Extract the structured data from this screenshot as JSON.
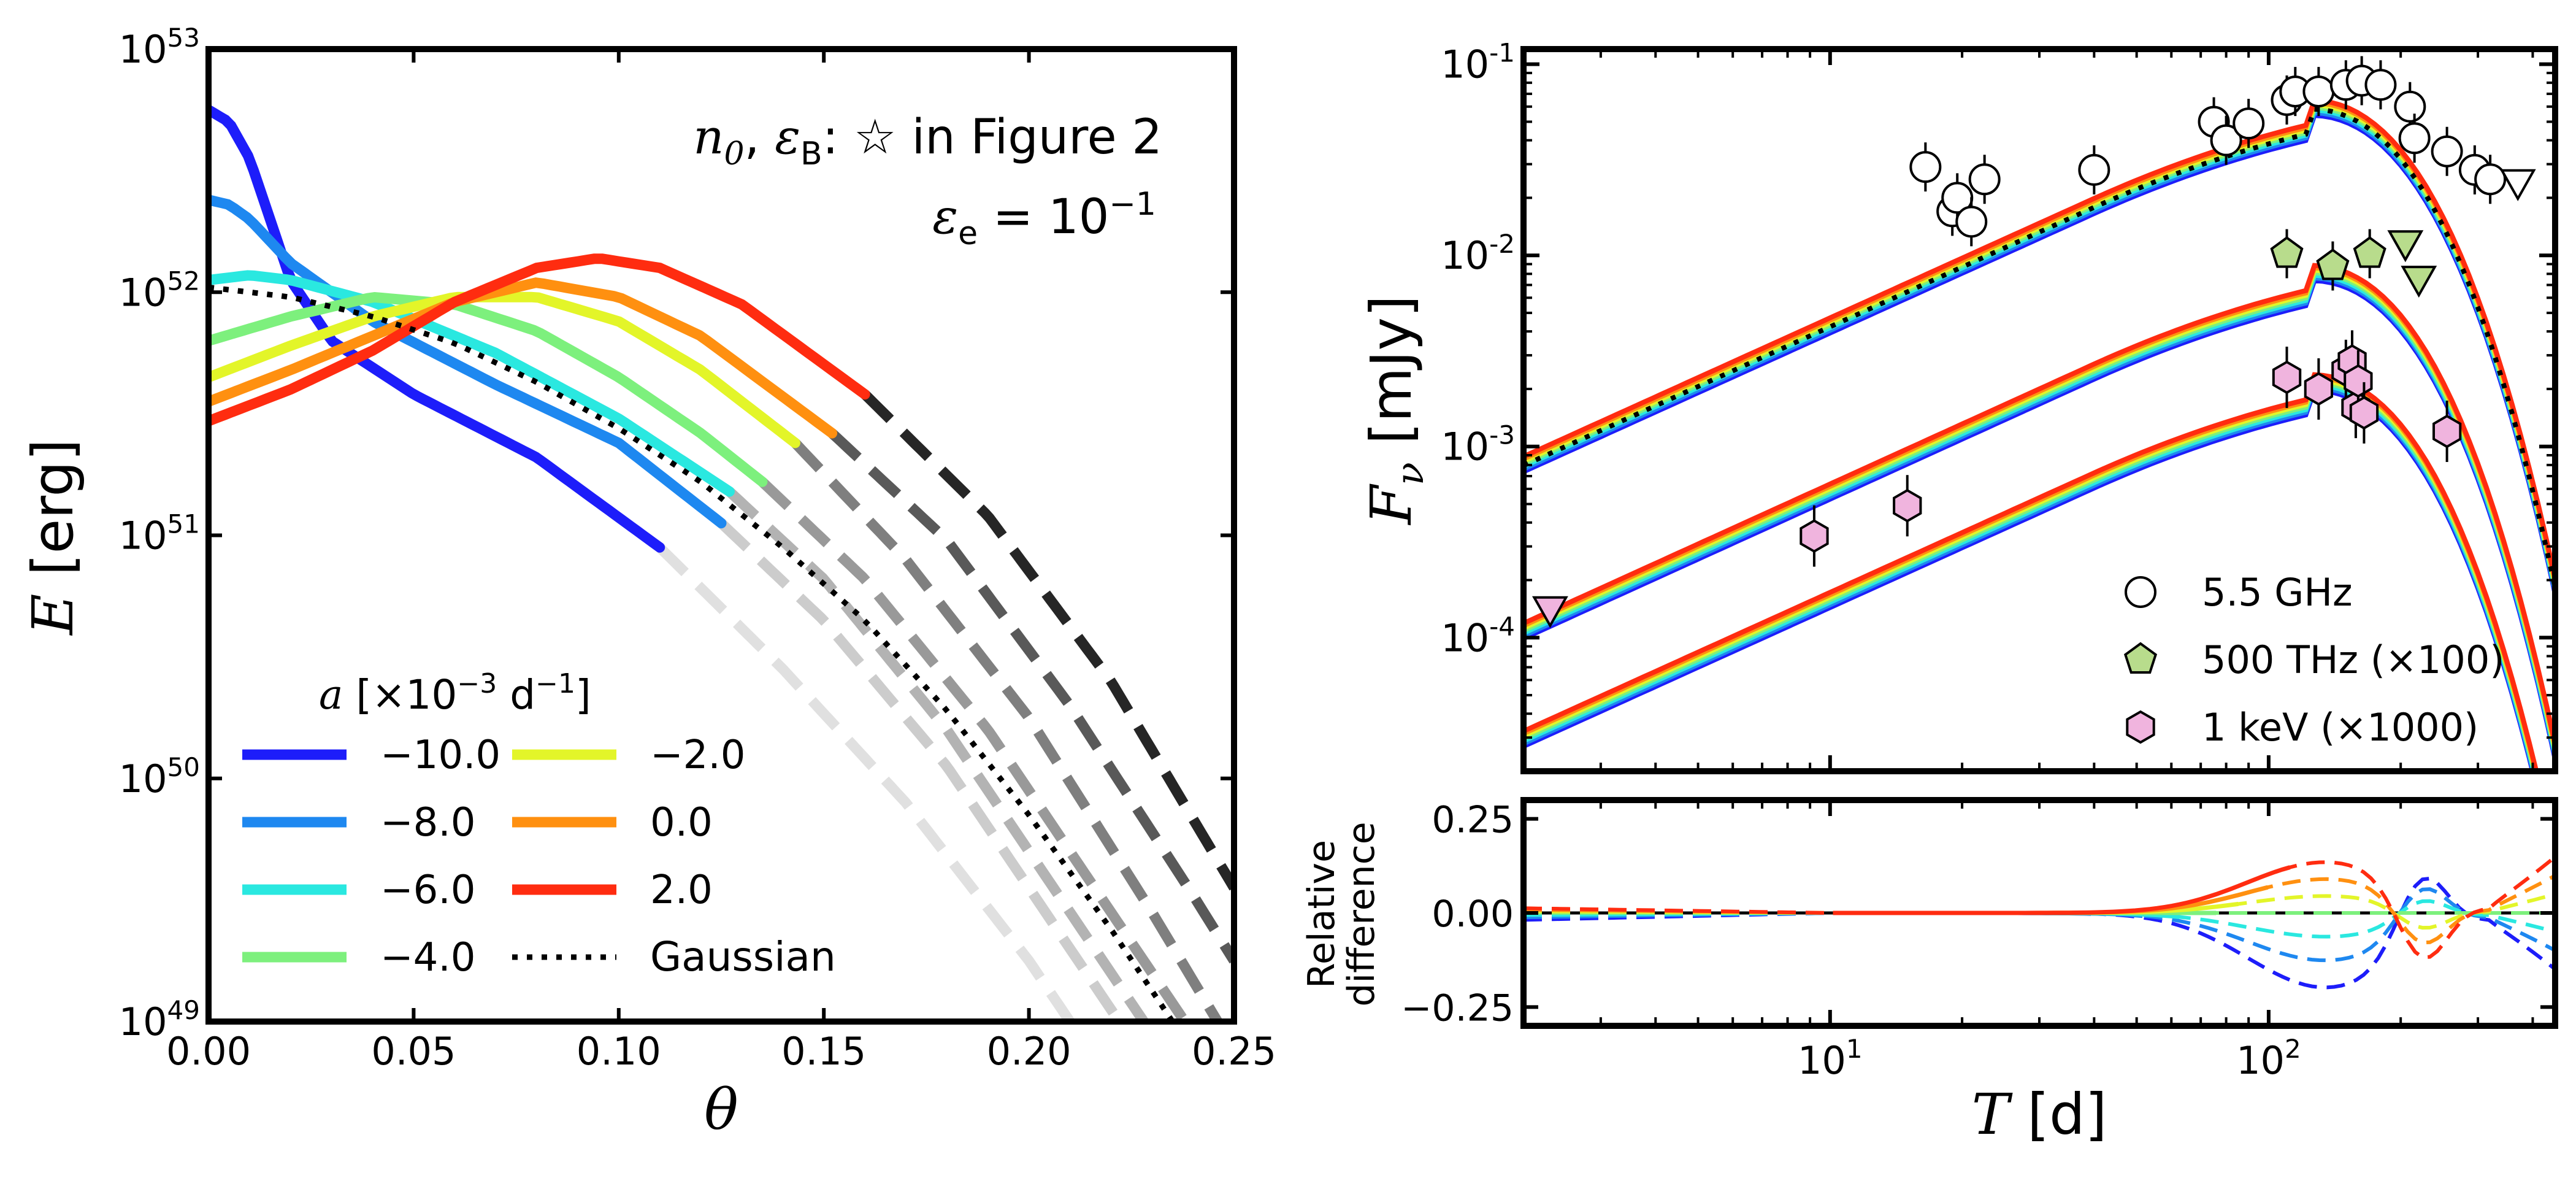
{
  "chart_data": [
    {
      "type": "line",
      "panel": "left",
      "ylabel": "E [erg]",
      "xlabel": "θ",
      "yscale": "log",
      "xlim": [
        0,
        0.25
      ],
      "ylim_exp": [
        49,
        53
      ],
      "x_ticks": [
        "0.00",
        "0.05",
        "0.10",
        "0.15",
        "0.20",
        "0.25"
      ],
      "y_ticks": [
        "10^49",
        "10^50",
        "10^51",
        "10^52",
        "10^53"
      ],
      "annotations": [
        "n₀, ε_B: ☆ in Figure 2",
        "ε_e = 10⁻¹"
      ],
      "legend_title": "a [×10⁻³ d⁻¹]",
      "legend_placement": "lower-left",
      "series": [
        {
          "name": "−10.0",
          "color": "#1d1dfa",
          "dash_color": "#e0e0e0",
          "theta_end": 0.11,
          "points": [
            [
              0.0,
              52.75
            ],
            [
              0.005,
              52.7
            ],
            [
              0.01,
              52.55
            ],
            [
              0.015,
              52.3
            ],
            [
              0.02,
              52.05
            ],
            [
              0.03,
              51.8
            ],
            [
              0.05,
              51.58
            ],
            [
              0.08,
              51.32
            ],
            [
              0.11,
              50.95
            ],
            [
              0.14,
              50.45
            ],
            [
              0.17,
              49.9
            ],
            [
              0.2,
              49.25
            ],
            [
              0.21,
              49.0
            ]
          ]
        },
        {
          "name": "−8.0",
          "color": "#1e88f0",
          "dash_color": "#cccccc",
          "theta_end": 0.125,
          "points": [
            [
              0.0,
              52.38
            ],
            [
              0.005,
              52.36
            ],
            [
              0.01,
              52.3
            ],
            [
              0.02,
              52.12
            ],
            [
              0.04,
              51.88
            ],
            [
              0.07,
              51.62
            ],
            [
              0.1,
              51.38
            ],
            [
              0.125,
              51.05
            ],
            [
              0.15,
              50.65
            ],
            [
              0.18,
              50.05
            ],
            [
              0.21,
              49.3
            ],
            [
              0.222,
              49.0
            ]
          ]
        },
        {
          "name": "−6.0",
          "color": "#2ae8e0",
          "dash_color": "#b3b3b3",
          "theta_end": 0.127,
          "points": [
            [
              0.0,
              52.05
            ],
            [
              0.01,
              52.07
            ],
            [
              0.02,
              52.05
            ],
            [
              0.04,
              51.96
            ],
            [
              0.07,
              51.75
            ],
            [
              0.1,
              51.48
            ],
            [
              0.127,
              51.18
            ],
            [
              0.15,
              50.82
            ],
            [
              0.18,
              50.2
            ],
            [
              0.21,
              49.45
            ],
            [
              0.228,
              49.0
            ]
          ]
        },
        {
          "name": "−4.0",
          "color": "#7df07d",
          "dash_color": "#999999",
          "theta_end": 0.135,
          "points": [
            [
              0.0,
              51.8
            ],
            [
              0.02,
              51.9
            ],
            [
              0.04,
              51.98
            ],
            [
              0.06,
              51.95
            ],
            [
              0.08,
              51.84
            ],
            [
              0.1,
              51.65
            ],
            [
              0.12,
              51.42
            ],
            [
              0.135,
              51.22
            ],
            [
              0.16,
              50.82
            ],
            [
              0.19,
              50.2
            ],
            [
              0.22,
              49.45
            ],
            [
              0.238,
              49.0
            ]
          ]
        },
        {
          "name": "−2.0",
          "color": "#e3f529",
          "dash_color": "#7f7f7f",
          "theta_end": 0.143,
          "points": [
            [
              0.0,
              51.65
            ],
            [
              0.02,
              51.78
            ],
            [
              0.04,
              51.9
            ],
            [
              0.06,
              51.98
            ],
            [
              0.08,
              51.98
            ],
            [
              0.1,
              51.88
            ],
            [
              0.12,
              51.68
            ],
            [
              0.143,
              51.38
            ],
            [
              0.17,
              50.9
            ],
            [
              0.2,
              50.25
            ],
            [
              0.23,
              49.45
            ],
            [
              0.246,
              49.0
            ]
          ]
        },
        {
          "name": "0.0",
          "color": "#ff9010",
          "dash_color": "#595959",
          "theta_end": 0.152,
          "points": [
            [
              0.0,
              51.55
            ],
            [
              0.02,
              51.68
            ],
            [
              0.04,
              51.82
            ],
            [
              0.06,
              51.96
            ],
            [
              0.08,
              52.04
            ],
            [
              0.1,
              51.98
            ],
            [
              0.12,
              51.82
            ],
            [
              0.152,
              51.42
            ],
            [
              0.18,
              50.98
            ],
            [
              0.21,
              50.3
            ],
            [
              0.24,
              49.52
            ],
            [
              0.25,
              49.25
            ]
          ]
        },
        {
          "name": "2.0",
          "color": "#ff2c10",
          "dash_color": "#262626",
          "theta_end": 0.16,
          "points": [
            [
              0.0,
              51.47
            ],
            [
              0.02,
              51.6
            ],
            [
              0.04,
              51.76
            ],
            [
              0.06,
              51.96
            ],
            [
              0.08,
              52.1
            ],
            [
              0.095,
              52.14
            ],
            [
              0.11,
              52.1
            ],
            [
              0.13,
              51.95
            ],
            [
              0.16,
              51.58
            ],
            [
              0.19,
              51.08
            ],
            [
              0.22,
              50.4
            ],
            [
              0.25,
              49.55
            ]
          ]
        },
        {
          "name": "Gaussian",
          "color": "#000000",
          "style": "dotted",
          "points": [
            [
              0.0,
              52.02
            ],
            [
              0.02,
              51.98
            ],
            [
              0.04,
              51.9
            ],
            [
              0.06,
              51.79
            ],
            [
              0.08,
              51.63
            ],
            [
              0.1,
              51.44
            ],
            [
              0.12,
              51.22
            ],
            [
              0.14,
              50.95
            ],
            [
              0.16,
              50.65
            ],
            [
              0.18,
              50.28
            ],
            [
              0.2,
              49.85
            ],
            [
              0.22,
              49.38
            ],
            [
              0.235,
              49.0
            ]
          ]
        }
      ]
    },
    {
      "type": "line",
      "panel": "right-top",
      "ylabel": "F_ν [mJy]",
      "xscale": "log",
      "yscale": "log",
      "xlim": [
        2,
        450
      ],
      "ylim": [
        2e-05,
        0.12
      ],
      "x_ticks": [
        "10^1",
        "10^2"
      ],
      "y_ticks": [
        "10^-4",
        "10^-3",
        "10^-2",
        "10^-1"
      ],
      "legend_placement": "lower-right",
      "legend": [
        {
          "label": "5.5 GHz",
          "marker": "circle",
          "color": "#ffffff"
        },
        {
          "label": "500 THz (×100)",
          "marker": "pentagon",
          "color": "#b8dc8c"
        },
        {
          "label": "1 keV (×1000)",
          "marker": "hexagon",
          "color": "#f0b4de"
        }
      ],
      "models": [
        {
          "band": "5.5 GHz",
          "F_at_2d": 0.00082,
          "peak_T": 125,
          "peak_F": 0.06
        },
        {
          "band": "500 THz (×100)",
          "F_at_2d": 0.00011,
          "peak_T": 125,
          "peak_F": 0.0082
        },
        {
          "band": "1 keV (×1000)",
          "F_at_2d": 3e-05,
          "peak_T": 125,
          "peak_F": 0.0022
        }
      ],
      "observations": {
        "radio": [
          [
            16.5,
            0.029
          ],
          [
            19,
            0.017
          ],
          [
            19.5,
            0.02
          ],
          [
            21,
            0.015
          ],
          [
            22.5,
            0.025
          ],
          [
            40,
            0.028
          ],
          [
            75,
            0.05
          ],
          [
            80,
            0.04
          ],
          [
            90,
            0.049
          ],
          [
            110,
            0.065
          ],
          [
            115,
            0.072
          ],
          [
            130,
            0.072
          ],
          [
            150,
            0.078
          ],
          [
            163,
            0.082
          ],
          [
            180,
            0.078
          ],
          [
            210,
            0.06
          ],
          [
            215,
            0.041
          ],
          [
            255,
            0.035
          ],
          [
            295,
            0.028
          ],
          [
            320,
            0.025
          ]
        ],
        "radio_upper_limits": [
          [
            370,
            0.024
          ]
        ],
        "optical": [
          [
            110,
            0.0102
          ],
          [
            140,
            0.0088
          ],
          [
            170,
            0.0102
          ]
        ],
        "optical_upper_limits": [
          [
            205,
            0.0115
          ],
          [
            220,
            0.0075
          ]
        ],
        "xray": [
          [
            9.2,
            0.00034
          ],
          [
            15,
            0.00049
          ],
          [
            110,
            0.0023
          ],
          [
            130,
            0.002
          ],
          [
            150,
            0.0025
          ],
          [
            155,
            0.0028
          ],
          [
            158,
            0.0016
          ],
          [
            160,
            0.0022
          ],
          [
            165,
            0.0015
          ],
          [
            255,
            0.0012
          ]
        ],
        "xray_upper_limits": [
          [
            2.3,
            0.00014
          ]
        ]
      }
    },
    {
      "type": "line",
      "panel": "right-bottom",
      "ylabel": "Relative difference",
      "xlabel": "T [d]",
      "xscale": "log",
      "xlim": [
        2,
        450
      ],
      "ylim": [
        -0.3,
        0.3
      ],
      "y_ticks": [
        "−0.25",
        "0.00",
        "0.25"
      ],
      "x_ticks": [
        "10^1",
        "10^2"
      ]
    }
  ]
}
